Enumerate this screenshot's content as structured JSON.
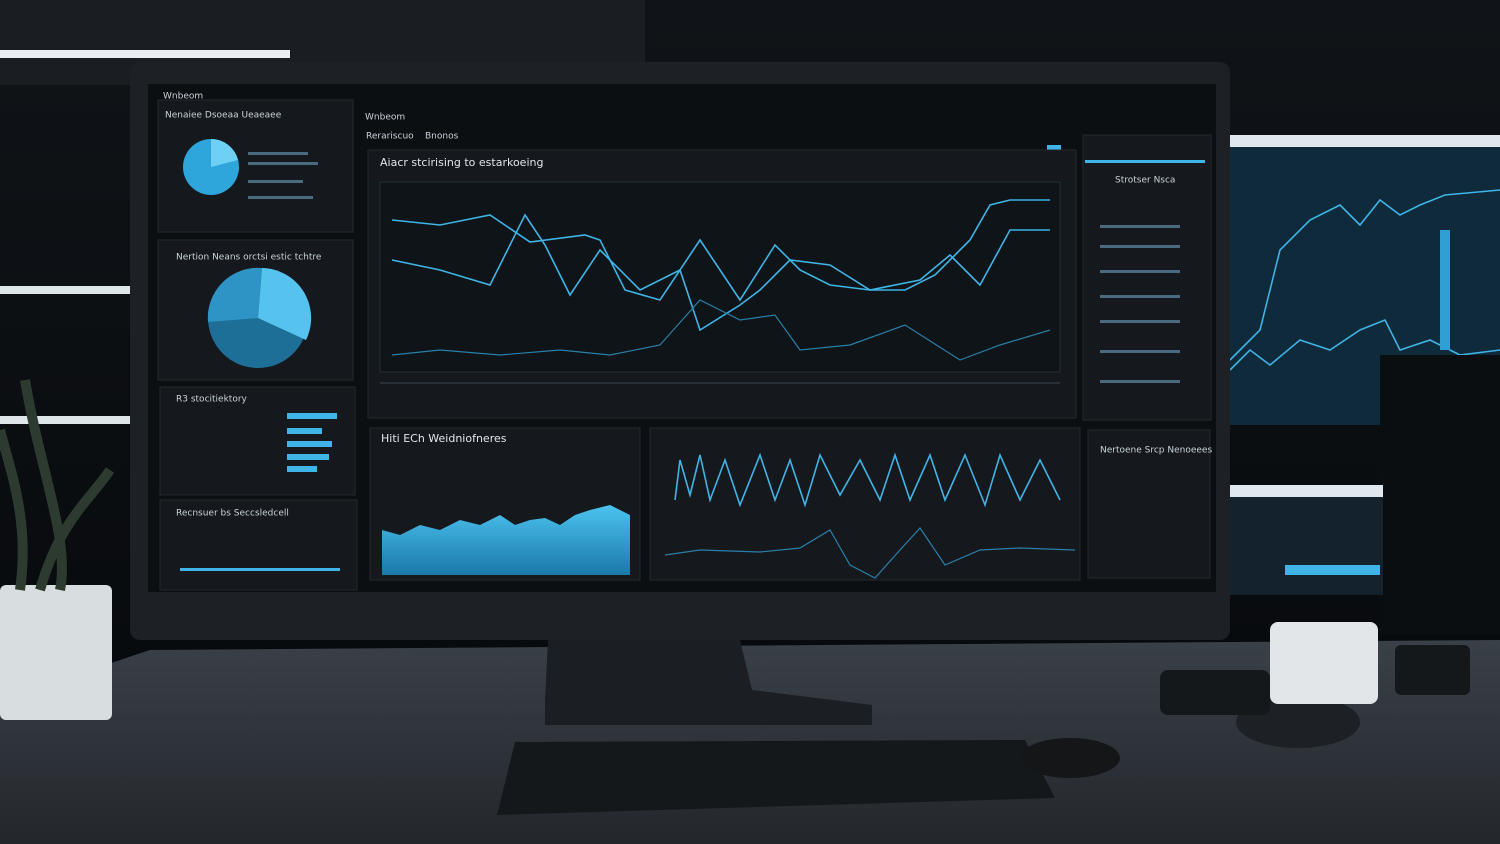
{
  "screen": {
    "window_title": "Wnbeom",
    "tab": "Wnbeom",
    "menu": [
      "Rerariscuo",
      "Bnonos"
    ],
    "chart_title": "Aiacr stcirising to estarkoeing",
    "left_panels": [
      "Nenaiee Dsoeaa Ueaeaee",
      "Nertion Neans orctsi estic tchtre",
      "R3 stocitiektory",
      "Recnsuer bs Seccsledcell"
    ],
    "bottom_left_title": "Hiti ECh Weidniofneres",
    "right_panel_title": "Strotser Nsca",
    "right_bottom_title": "Nertoene Srcp Nenoeees"
  }
}
